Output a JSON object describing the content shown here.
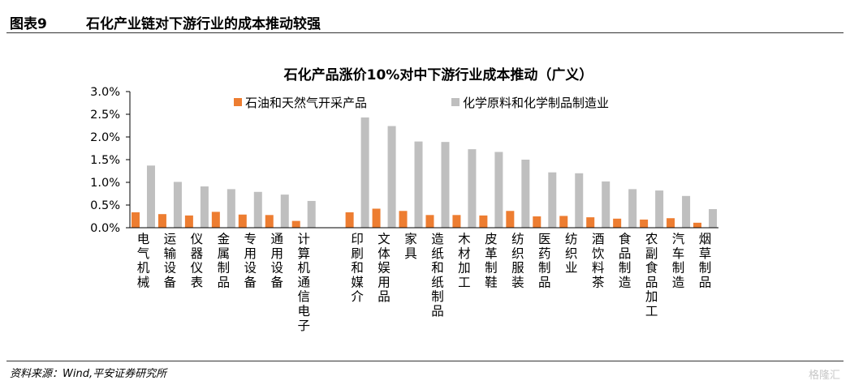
{
  "figure": {
    "number": "图表9",
    "title": "石化产业链对下游行业的成本推动较强",
    "source": "资料来源：Wind,平安证券研究所",
    "watermark": "格隆汇"
  },
  "chart_data": {
    "type": "bar",
    "title": "石化产品涨价10%对中下游行业成本推动（广义）",
    "xlabel": "",
    "ylabel": "",
    "ylim": [
      0,
      0.03
    ],
    "yticks": [
      "0.0%",
      "0.5%",
      "1.0%",
      "1.5%",
      "2.0%",
      "2.5%",
      "3.0%"
    ],
    "grid": false,
    "legend_position": "top",
    "categories": [
      "电气机械",
      "运输设备",
      "仪器仪表",
      "金属制品",
      "专用设备",
      "通用设备",
      "计算机通信电子",
      "",
      "印刷和媒介",
      "文体娱用品",
      "家具",
      "造纸和纸制品",
      "木材加工",
      "皮革制鞋",
      "纺织服装",
      "医药制品",
      "纺织业",
      "酒饮料茶",
      "食品制造",
      "农副食品加工",
      "汽车制造",
      "烟草制品"
    ],
    "series": [
      {
        "name": "石油和天然气开采产品",
        "color": "#ED7D31",
        "values": [
          0.0034,
          0.003,
          0.0027,
          0.0035,
          0.0029,
          0.0028,
          0.0015,
          null,
          0.0034,
          0.0042,
          0.0037,
          0.0028,
          0.0028,
          0.0027,
          0.0037,
          0.0025,
          0.0026,
          0.0023,
          0.002,
          0.0018,
          0.0021,
          0.0011
        ]
      },
      {
        "name": "化学原料和化学制品制造业",
        "color": "#BFBFBF",
        "values": [
          0.0137,
          0.0101,
          0.0091,
          0.0085,
          0.0079,
          0.0073,
          0.0059,
          null,
          0.0243,
          0.0224,
          0.019,
          0.0189,
          0.0173,
          0.0167,
          0.015,
          0.0122,
          0.012,
          0.0102,
          0.0085,
          0.0082,
          0.007,
          0.0041
        ]
      }
    ]
  }
}
